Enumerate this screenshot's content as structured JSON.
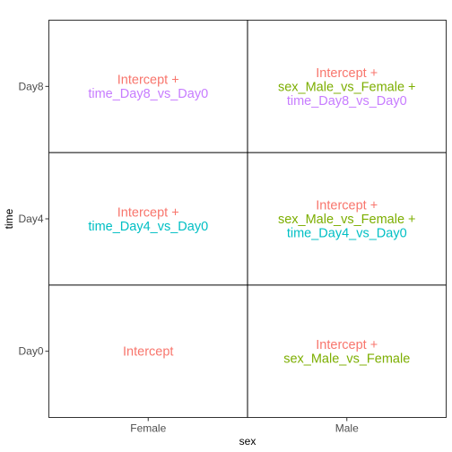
{
  "chart_data": {
    "type": "table",
    "xlabel": "sex",
    "ylabel": "time",
    "x_categories": [
      "Female",
      "Male"
    ],
    "y_categories": [
      "Day0",
      "Day4",
      "Day8"
    ],
    "terms": {
      "intercept": {
        "text": "Intercept",
        "color": "#F8766D"
      },
      "intercept_plus": {
        "text": "Intercept +",
        "color": "#F8766D"
      },
      "sex_plus": {
        "text": "sex_Male_vs_Female +",
        "color": "#7CAE00"
      },
      "sex": {
        "text": "sex_Male_vs_Female",
        "color": "#7CAE00"
      },
      "day4": {
        "text": "time_Day4_vs_Day0",
        "color": "#00BFC4"
      },
      "day8": {
        "text": "time_Day8_vs_Day0",
        "color": "#C77CFF"
      }
    },
    "cells": [
      {
        "x": "Female",
        "y": "Day0",
        "lines": [
          "intercept"
        ]
      },
      {
        "x": "Male",
        "y": "Day0",
        "lines": [
          "intercept_plus",
          "sex"
        ]
      },
      {
        "x": "Female",
        "y": "Day4",
        "lines": [
          "intercept_plus",
          "day4"
        ]
      },
      {
        "x": "Male",
        "y": "Day4",
        "lines": [
          "intercept_plus",
          "sex_plus",
          "day4"
        ]
      },
      {
        "x": "Female",
        "y": "Day8",
        "lines": [
          "intercept_plus",
          "day8"
        ]
      },
      {
        "x": "Male",
        "y": "Day8",
        "lines": [
          "intercept_plus",
          "sex_plus",
          "day8"
        ]
      }
    ],
    "grid": true,
    "legend": "none"
  }
}
